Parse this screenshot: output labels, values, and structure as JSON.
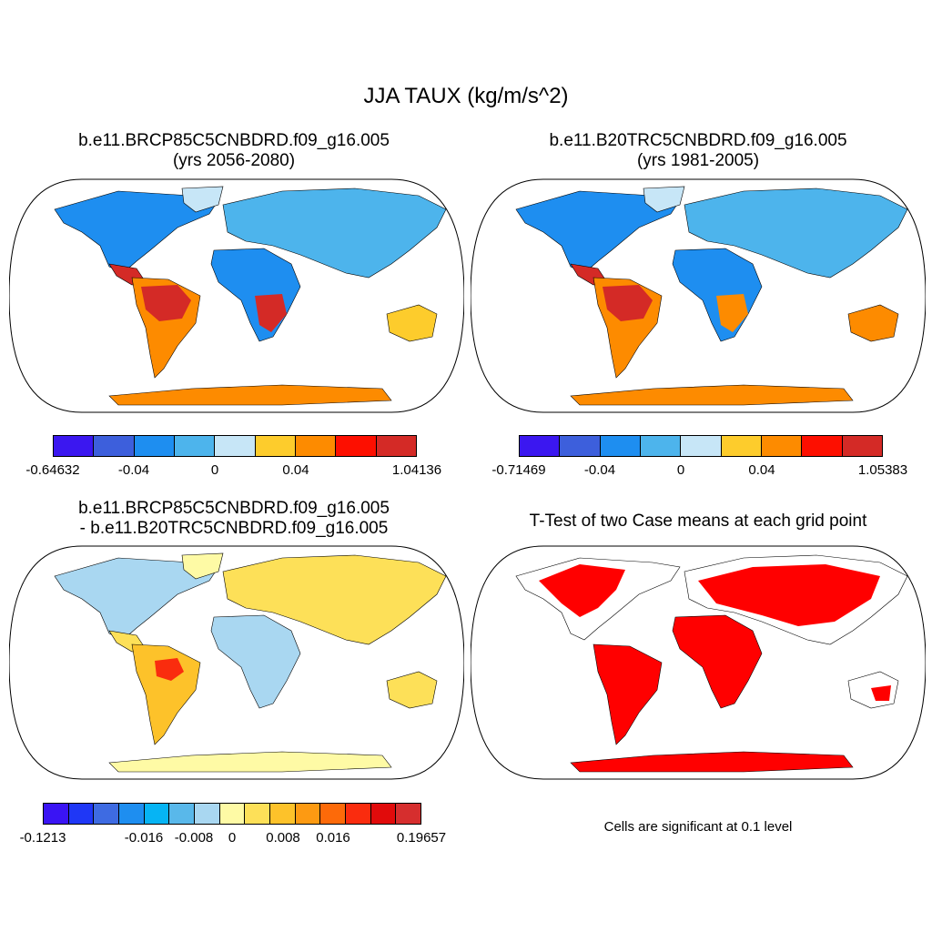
{
  "title": "JJA TAUX (kg/m/s^2)",
  "panels": {
    "p1": {
      "title_line1": "b.e11.BRCP85C5CNBDRD.f09_g16.005",
      "title_line2": "(yrs 2056-2080)"
    },
    "p2": {
      "title_line1": "b.e11.B20TRC5CNBDRD.f09_g16.005",
      "title_line2": "(yrs 1981-2005)"
    },
    "p3": {
      "title_line1": "b.e11.BRCP85C5CNBDRD.f09_g16.005",
      "title_line2": "- b.e11.B20TRC5CNBDRD.f09_g16.005"
    },
    "p4": {
      "title_line1": "T-Test of two Case means at each grid point",
      "note": "Cells are significant at 0.1 level"
    }
  },
  "colorbars": {
    "cb1": {
      "colors": [
        "#3b17f0",
        "#3d5fdc",
        "#1e8ef0",
        "#4db4ec",
        "#c7e6f7",
        "#fdcc2c",
        "#fd8b00",
        "#fd0f00",
        "#d42a26"
      ],
      "labels": [
        "-0.64632",
        "-0.04",
        "0",
        "0.04",
        "1.04136"
      ]
    },
    "cb2": {
      "colors": [
        "#3b17f0",
        "#3d5fdc",
        "#1e8ef0",
        "#4db4ec",
        "#c7e6f7",
        "#fdcc2c",
        "#fd8b00",
        "#fd0f00",
        "#d42a26"
      ],
      "labels": [
        "-0.71469",
        "-0.04",
        "0",
        "0.04",
        "1.05383"
      ]
    },
    "cb3": {
      "colors": [
        "#3a14f4",
        "#1f37f6",
        "#3e6be2",
        "#1e8ef0",
        "#06b4f4",
        "#59b8ea",
        "#a9d7f1",
        "#fefaa5",
        "#fde058",
        "#fdc22a",
        "#fd9a12",
        "#fd6a09",
        "#fa2c0e",
        "#e10b0b",
        "#d62e2e"
      ],
      "labels": [
        "-0.1213",
        "-0.016",
        "-0.008",
        "0",
        "0.008",
        "0.016",
        "0.19657"
      ]
    }
  },
  "map_colors": {
    "land_p1": "#4da8ee",
    "land_p3": "#b9defa",
    "significant": "#ff0000"
  }
}
